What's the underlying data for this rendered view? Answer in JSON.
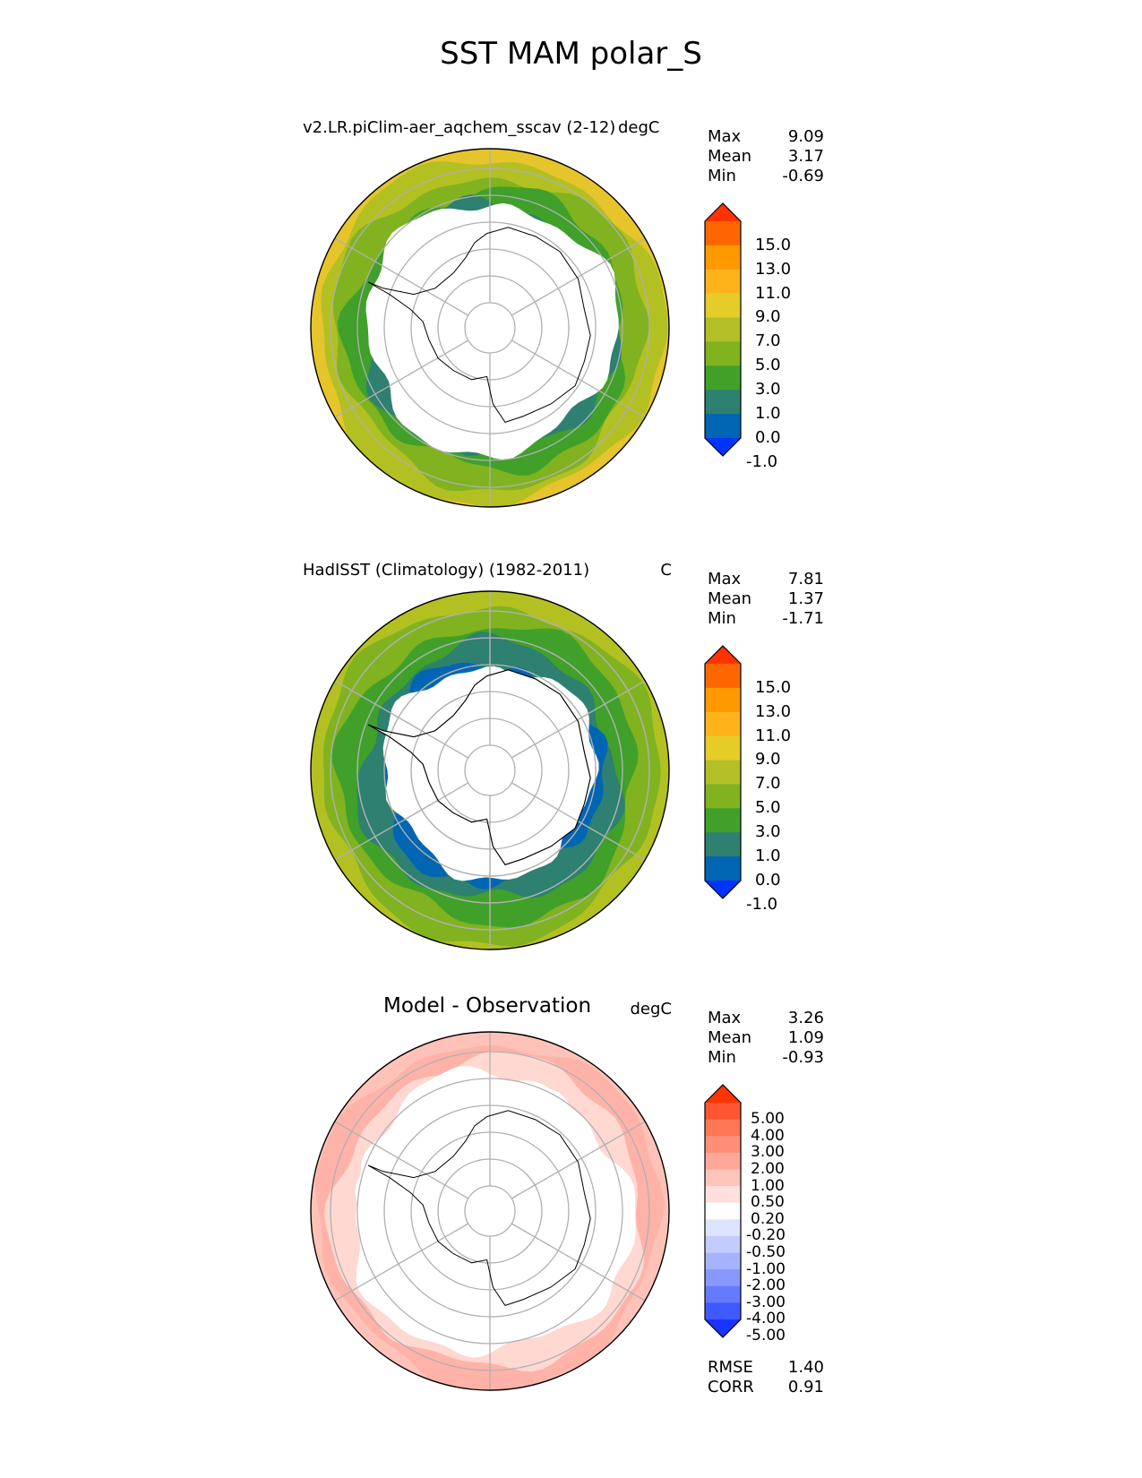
{
  "title": "SST MAM polar_S",
  "panels": [
    {
      "title": "v2.LR.piClim-aer_aqchem_sscav (2-12)",
      "units": "degC",
      "stats": [
        {
          "label": "Max",
          "value": "9.09"
        },
        {
          "label": "Mean",
          "value": "3.17"
        },
        {
          "label": "Min",
          "value": "-0.69"
        }
      ],
      "colorbar": {
        "labels": [
          "15.0",
          "13.0",
          "11.0",
          "9.0",
          "7.0",
          "5.0",
          "3.0",
          "1.0",
          "0.0",
          "-1.0"
        ],
        "colors": [
          "#ff3300",
          "#ff6600",
          "#ff9900",
          "#ffb31a",
          "#e6cc29",
          "#b3bf26",
          "#80b31f",
          "#40a02a",
          "#2e8070",
          "#0066b3",
          "#0033ff"
        ]
      },
      "rings": [
        {
          "color": "#e6c42c"
        },
        {
          "color": "#b3c022"
        },
        {
          "color": "#80b31f"
        },
        {
          "color": "#40a02a"
        },
        {
          "color": "#2e8070"
        }
      ],
      "ice": "small"
    },
    {
      "title": "HadISST (Climatology) (1982-2011)",
      "units": "C",
      "stats": [
        {
          "label": "Max",
          "value": "7.81"
        },
        {
          "label": "Mean",
          "value": "1.37"
        },
        {
          "label": "Min",
          "value": "-1.71"
        }
      ],
      "colorbar": {
        "labels": [
          "15.0",
          "13.0",
          "11.0",
          "9.0",
          "7.0",
          "5.0",
          "3.0",
          "1.0",
          "0.0",
          "-1.0"
        ],
        "colors": [
          "#ff3300",
          "#ff6600",
          "#ff9900",
          "#ffb31a",
          "#e6cc29",
          "#b3bf26",
          "#80b31f",
          "#40a02a",
          "#2e8070",
          "#0066b3",
          "#0033ff"
        ]
      },
      "rings": [
        {
          "color": "#b3c022"
        },
        {
          "color": "#80b31f"
        },
        {
          "color": "#40a02a"
        },
        {
          "color": "#2e8070"
        },
        {
          "color": "#0066b3"
        }
      ],
      "ice": "large"
    },
    {
      "title": "Model - Observation",
      "units": "degC",
      "stats": [
        {
          "label": "Max",
          "value": "3.26"
        },
        {
          "label": "Mean",
          "value": "1.09"
        },
        {
          "label": "Min",
          "value": "-0.93"
        }
      ],
      "colorbar": {
        "labels": [
          "5.00",
          "4.00",
          "3.00",
          "2.00",
          "1.00",
          "0.50",
          "0.20",
          "-0.20",
          "-0.50",
          "-1.00",
          "-2.00",
          "-3.00",
          "-4.00",
          "-5.00"
        ],
        "colors": [
          "#ff3300",
          "#ff5533",
          "#ff7755",
          "#ff8f78",
          "#ffa89a",
          "#ffc4ba",
          "#ffe0dc",
          "#ffffff",
          "#dde4ff",
          "#c2ccff",
          "#a6b4ff",
          "#8898ff",
          "#667aff",
          "#4059ff",
          "#1a33ff"
        ]
      },
      "rings": [
        {
          "color": "#ffc2b8"
        },
        {
          "color": "#ffb3a8"
        },
        {
          "color": "#ffd8d2"
        },
        {
          "color": "#ffffff"
        }
      ],
      "ice": "small",
      "extra_stats": [
        {
          "label": "RMSE",
          "value": "1.40"
        },
        {
          "label": "CORR",
          "value": "0.91"
        }
      ]
    }
  ]
}
